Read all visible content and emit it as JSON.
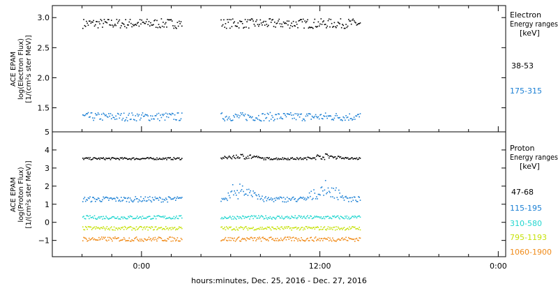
{
  "chart_data": [
    {
      "type": "scatter",
      "panel": "electron",
      "ylabel_lines": [
        "ACE EPAM",
        "log(Electron Flux)",
        "[1/(cm²s ster MeV)]"
      ],
      "ylim": [
        1.1,
        3.2
      ],
      "yticks": [
        1.5,
        2.0,
        2.5,
        3.0
      ],
      "ytick_labels": [
        "1.5",
        "2.0",
        "2.5",
        "3.0"
      ],
      "legend_title_lines": [
        "Electron",
        "Energy ranges",
        "[keV]"
      ],
      "gaps_hours": [
        [
          -5.3,
          -4.0
        ],
        [
          2.7,
          5.3
        ],
        [
          14.7,
          25.0
        ]
      ],
      "series": [
        {
          "name": "38-53",
          "color": "#000000",
          "mean": 2.91,
          "jitter": 0.08
        },
        {
          "name": "175-315",
          "color": "#1a7fd4",
          "mean": 1.36,
          "jitter": 0.07
        }
      ]
    },
    {
      "type": "scatter",
      "panel": "proton",
      "ylabel_lines": [
        "ACE EPAM",
        "log(Proton Flux)",
        "[1/(cm²s ster MeV)]"
      ],
      "ylim": [
        -1.9,
        5.0
      ],
      "yticks": [
        -1,
        0,
        1,
        2,
        3,
        4,
        5
      ],
      "ytick_labels": [
        "−1",
        "0",
        "1",
        "2",
        "3",
        "4",
        "5"
      ],
      "legend_title_lines": [
        "Proton",
        "Energy ranges",
        "[keV]"
      ],
      "gaps_hours": [
        [
          -5.3,
          -4.0
        ],
        [
          2.7,
          5.3
        ],
        [
          14.7,
          25.0
        ]
      ],
      "series": [
        {
          "name": "47-68",
          "color": "#000000",
          "mean": 3.55,
          "jitter": 0.06
        },
        {
          "name": "115-195",
          "color": "#1a7fd4",
          "mean": 1.3,
          "jitter": 0.15
        },
        {
          "name": "310-580",
          "color": "#22d6cf",
          "mean": 0.3,
          "jitter": 0.1
        },
        {
          "name": "795-1193",
          "color": "#c6e20a",
          "mean": -0.3,
          "jitter": 0.1
        },
        {
          "name": "1060-1900",
          "color": "#f08a18",
          "mean": -0.9,
          "jitter": 0.12
        }
      ]
    }
  ],
  "x_axis": {
    "xlim_hours": [
      -6,
      24.5
    ],
    "ticks_hours": [
      0,
      12,
      24
    ],
    "tick_labels": [
      "0:00",
      "12:00",
      "0:00"
    ],
    "xlabel": "hours:minutes, Dec. 25, 2016 - Dec. 27, 2016"
  }
}
